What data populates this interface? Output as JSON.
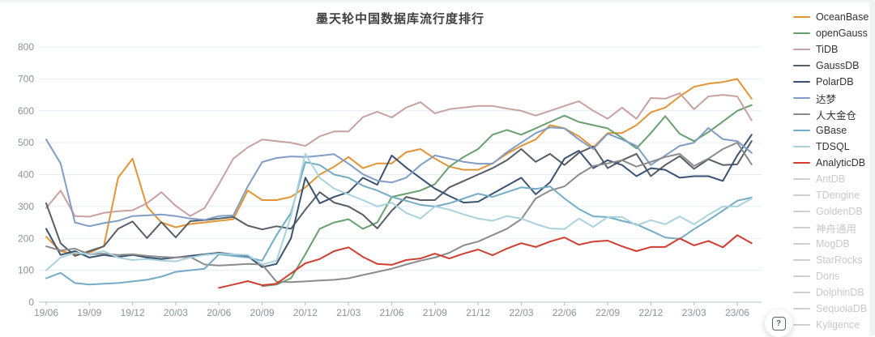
{
  "title": "墨天轮中国数据库流行度排行",
  "help": {
    "icon": "?"
  },
  "legend": {
    "items": [
      {
        "label": "OceanBase",
        "color": "#E39435",
        "active": true
      },
      {
        "label": "openGauss",
        "color": "#68A06F",
        "active": true
      },
      {
        "label": "TiDB",
        "color": "#C7A2A0",
        "active": true
      },
      {
        "label": "GaussDB",
        "color": "#575E66",
        "active": true
      },
      {
        "label": "PolarDB",
        "color": "#3A5272",
        "active": true
      },
      {
        "label": "达梦",
        "color": "#7F9DC6",
        "active": true
      },
      {
        "label": "人大金仓",
        "color": "#8B8B8B",
        "active": true
      },
      {
        "label": "GBase",
        "color": "#72ACC6",
        "active": true
      },
      {
        "label": "TDSQL",
        "color": "#A9D2DE",
        "active": true
      },
      {
        "label": "AnalyticDB",
        "color": "#D23C31",
        "active": true
      },
      {
        "label": "AntDB",
        "color": "#CFCFCF",
        "active": false
      },
      {
        "label": "TDengine",
        "color": "#CFCFCF",
        "active": false
      },
      {
        "label": "GoldenDB",
        "color": "#CFCFCF",
        "active": false
      },
      {
        "label": "神舟通用",
        "color": "#CFCFCF",
        "active": false
      },
      {
        "label": "MogDB",
        "color": "#CFCFCF",
        "active": false
      },
      {
        "label": "StarRocks",
        "color": "#CFCFCF",
        "active": false
      },
      {
        "label": "Doris",
        "color": "#CFCFCF",
        "active": false
      },
      {
        "label": "DolphinDB",
        "color": "#CFCFCF",
        "active": false
      },
      {
        "label": "SequoiaDB",
        "color": "#CFCFCF",
        "active": false
      },
      {
        "label": "Kyligence",
        "color": "#CFCFCF",
        "active": false
      }
    ]
  },
  "chart_data": {
    "type": "line",
    "title": "墨天轮中国数据库流行度排行",
    "xlabel": "",
    "ylabel": "",
    "ylim": [
      0,
      800
    ],
    "y_ticks": [
      0,
      100,
      200,
      300,
      400,
      500,
      600,
      700,
      800
    ],
    "grid": true,
    "legend_position": "right",
    "x_tick_labels": [
      "19/06",
      "19/09",
      "19/12",
      "20/03",
      "20/06",
      "20/09",
      "20/12",
      "21/03",
      "21/06",
      "21/09",
      "21/12",
      "22/03",
      "22/06",
      "22/09",
      "22/12",
      "23/03",
      "23/06"
    ],
    "months": [
      "19/06",
      "19/07",
      "19/08",
      "19/09",
      "19/10",
      "19/11",
      "19/12",
      "20/01",
      "20/02",
      "20/03",
      "20/04",
      "20/05",
      "20/06",
      "20/07",
      "20/08",
      "20/09",
      "20/10",
      "20/11",
      "20/12",
      "21/01",
      "21/02",
      "21/03",
      "21/04",
      "21/05",
      "21/06",
      "21/07",
      "21/08",
      "21/09",
      "21/10",
      "21/11",
      "21/12",
      "22/01",
      "22/02",
      "22/03",
      "22/04",
      "22/05",
      "22/06",
      "22/07",
      "22/08",
      "22/09",
      "22/10",
      "22/11",
      "22/12",
      "23/01",
      "23/02",
      "23/03",
      "23/04",
      "23/05",
      "23/06",
      "23/07"
    ],
    "series": [
      {
        "name": "OceanBase",
        "color": "#E39435",
        "values": [
          205,
          160,
          150,
          155,
          175,
          390,
          450,
          300,
          250,
          235,
          245,
          250,
          255,
          260,
          350,
          320,
          320,
          330,
          360,
          400,
          425,
          455,
          420,
          435,
          435,
          470,
          480,
          450,
          425,
          415,
          415,
          435,
          465,
          490,
          510,
          555,
          545,
          520,
          485,
          530,
          530,
          555,
          595,
          610,
          645,
          675,
          685,
          690,
          700,
          638
        ]
      },
      {
        "name": "openGauss",
        "color": "#68A06F",
        "values": [
          null,
          null,
          null,
          null,
          null,
          null,
          null,
          null,
          null,
          null,
          null,
          null,
          null,
          null,
          null,
          50,
          55,
          75,
          150,
          230,
          250,
          260,
          230,
          250,
          330,
          340,
          350,
          370,
          425,
          455,
          480,
          525,
          540,
          525,
          545,
          565,
          585,
          565,
          555,
          545,
          515,
          482,
          530,
          583,
          528,
          505,
          533,
          566,
          600,
          618
        ]
      },
      {
        "name": "TiDB",
        "color": "#C7A2A0",
        "values": [
          295,
          350,
          270,
          268,
          280,
          285,
          288,
          310,
          345,
          302,
          270,
          295,
          370,
          450,
          485,
          510,
          505,
          500,
          490,
          520,
          535,
          535,
          580,
          597,
          579,
          610,
          627,
          592,
          605,
          610,
          615,
          615,
          607,
          600,
          585,
          600,
          615,
          630,
          600,
          575,
          610,
          575,
          640,
          638,
          655,
          605,
          645,
          650,
          645,
          570
        ]
      },
      {
        "name": "GaussDB",
        "color": "#575E66",
        "values": [
          310,
          185,
          145,
          160,
          175,
          230,
          253,
          201,
          251,
          203,
          254,
          257,
          262,
          267,
          240,
          228,
          238,
          230,
          290,
          345,
          312,
          300,
          274,
          231,
          287,
          330,
          320,
          320,
          360,
          380,
          400,
          420,
          445,
          480,
          440,
          465,
          430,
          468,
          488,
          420,
          445,
          465,
          395,
          430,
          458,
          418,
          448,
          430,
          432,
          505
        ]
      },
      {
        "name": "PolarDB",
        "color": "#3A5272",
        "values": [
          230,
          148,
          160,
          140,
          148,
          142,
          148,
          140,
          135,
          140,
          145,
          150,
          155,
          150,
          145,
          110,
          120,
          200,
          390,
          310,
          330,
          345,
          390,
          368,
          460,
          422,
          389,
          356,
          333,
          312,
          315,
          340,
          365,
          390,
          338,
          376,
          450,
          475,
          420,
          445,
          430,
          395,
          420,
          415,
          390,
          395,
          395,
          380,
          460,
          525
        ]
      },
      {
        "name": "达梦",
        "color": "#7F9DC6",
        "values": [
          510,
          435,
          250,
          238,
          248,
          255,
          270,
          272,
          275,
          270,
          262,
          258,
          270,
          272,
          363,
          439,
          452,
          457,
          455,
          459,
          464,
          434,
          401,
          381,
          375,
          390,
          430,
          460,
          450,
          440,
          434,
          434,
          470,
          500,
          530,
          548,
          545,
          510,
          480,
          528,
          510,
          490,
          430,
          460,
          490,
          500,
          546,
          511,
          505,
          468
        ]
      },
      {
        "name": "人大金仓",
        "color": "#8B8B8B",
        "values": [
          175,
          162,
          168,
          150,
          152,
          148,
          150,
          145,
          142,
          140,
          142,
          118,
          115,
          117,
          120,
          118,
          64,
          63,
          65,
          68,
          70,
          75,
          85,
          95,
          105,
          118,
          130,
          140,
          155,
          178,
          190,
          210,
          230,
          260,
          325,
          350,
          363,
          400,
          427,
          435,
          445,
          425,
          440,
          455,
          465,
          427,
          450,
          480,
          500,
          432
        ]
      },
      {
        "name": "GBase",
        "color": "#72ACC6",
        "values": [
          75,
          92,
          60,
          55,
          58,
          60,
          65,
          70,
          80,
          95,
          100,
          105,
          150,
          145,
          140,
          130,
          210,
          280,
          439,
          430,
          400,
          390,
          365,
          350,
          330,
          318,
          305,
          300,
          310,
          325,
          340,
          330,
          345,
          360,
          355,
          363,
          325,
          292,
          269,
          267,
          255,
          244,
          224,
          203,
          198,
          229,
          257,
          287,
          318,
          328
        ]
      },
      {
        "name": "TDSQL",
        "color": "#A9D2DE",
        "values": [
          100,
          140,
          155,
          150,
          160,
          140,
          132,
          135,
          130,
          128,
          140,
          148,
          152,
          150,
          148,
          118,
          130,
          270,
          465,
          390,
          356,
          338,
          320,
          300,
          312,
          280,
          262,
          300,
          290,
          275,
          262,
          255,
          270,
          262,
          245,
          231,
          229,
          262,
          236,
          267,
          267,
          241,
          257,
          244,
          269,
          244,
          274,
          300,
          300,
          325
        ]
      },
      {
        "name": "AnalyticDB",
        "color": "#D23C31",
        "values": [
          null,
          null,
          null,
          null,
          null,
          null,
          null,
          null,
          null,
          null,
          null,
          null,
          45,
          55,
          66,
          53,
          58,
          90,
          122,
          135,
          160,
          172,
          142,
          120,
          117,
          132,
          137,
          152,
          137,
          152,
          165,
          147,
          168,
          185,
          173,
          190,
          203,
          180,
          190,
          193,
          175,
          160,
          173,
          173,
          200,
          178,
          192,
          172,
          210,
          185
        ]
      }
    ],
    "hidden_series_names": [
      "AntDB",
      "TDengine",
      "GoldenDB",
      "神舟通用",
      "MogDB",
      "StarRocks",
      "Doris",
      "DolphinDB",
      "SequoiaDB",
      "Kyligence"
    ]
  }
}
